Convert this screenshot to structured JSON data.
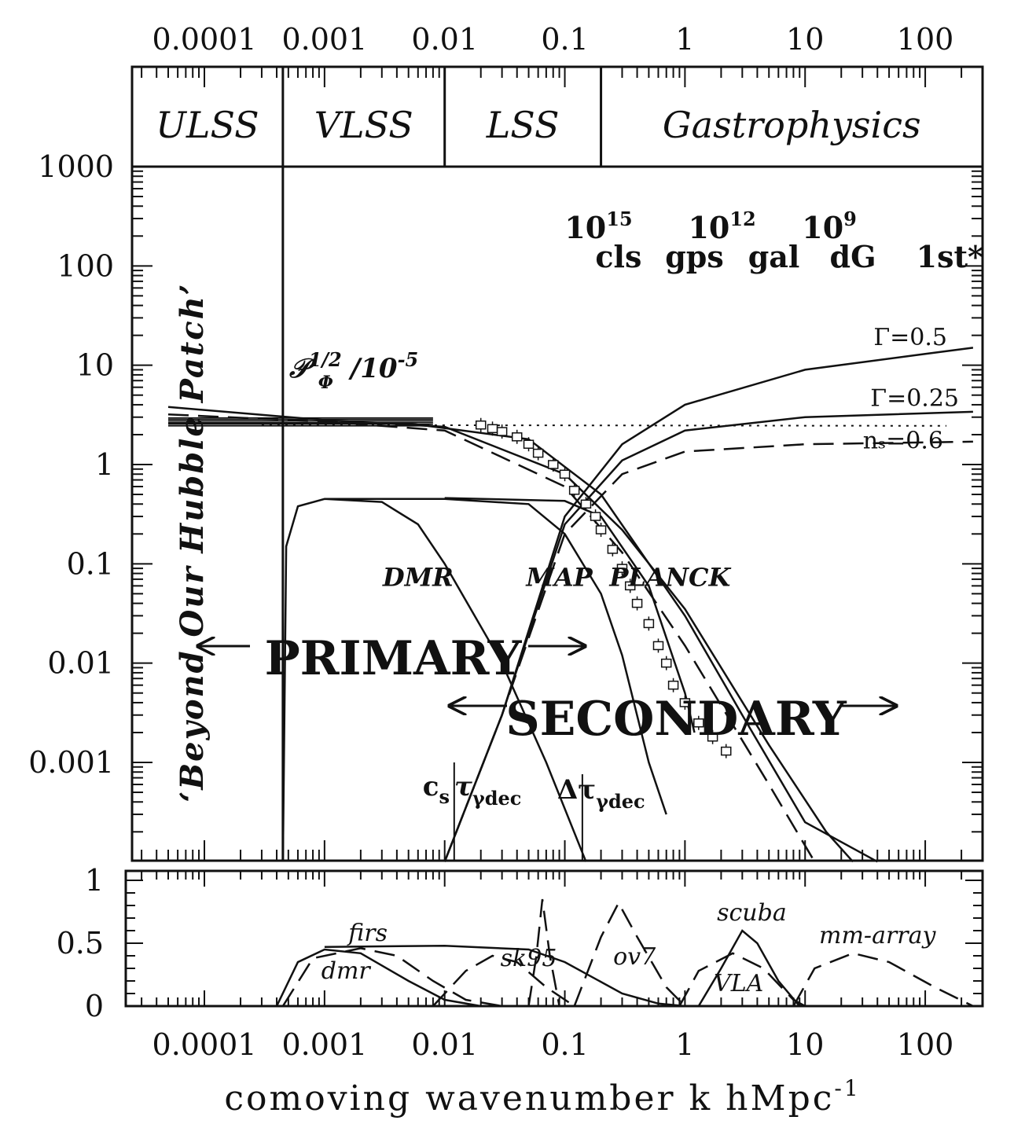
{
  "chart_data": [
    {
      "type": "line",
      "panel": "main",
      "x_axis": {
        "label": "comoving wavenumber k hMpc",
        "label_superscript": "-1",
        "scale": "log",
        "range": [
          2.5e-05,
          300
        ],
        "ticks": [
          "0.0001",
          "0.001",
          "0.01",
          "0.1",
          "1",
          "10",
          "100"
        ]
      },
      "top_axis": {
        "ticks": [
          "0.0001",
          "0.001",
          "0.01",
          "0.1",
          "1",
          "10",
          "100"
        ]
      },
      "y_axis": {
        "scale": "log",
        "range": [
          0.0001,
          1000
        ],
        "ticks": [
          "1000",
          "100",
          "10",
          "1",
          "0.1",
          "0.01",
          "0.001"
        ]
      },
      "regions": [
        {
          "label": "ULSS",
          "k_end": 0.00045
        },
        {
          "label": "VLSS",
          "k_end": 0.01
        },
        {
          "label": "LSS",
          "k_end": 0.2
        },
        {
          "label": "Gastrophysics"
        }
      ],
      "masses": {
        "values": [
          {
            "base": "10",
            "exp": "15",
            "k": 0.3
          },
          {
            "base": "10",
            "exp": "12",
            "k": 3.2
          },
          {
            "base": "10",
            "exp": "9",
            "k": 25
          }
        ],
        "objects": [
          "cls",
          "gps",
          "gal",
          "dG",
          "1st*"
        ]
      },
      "annotations": {
        "primordial": {
          "base": "𝒫",
          "sup": "1/2",
          "sub": "Φ",
          "rest": "/10",
          "rest_sup": "-5"
        },
        "beyond": "‘Beyond Our Hubble Patch’",
        "primary": "PRIMARY",
        "secondary": "SECONDARY",
        "cs_tau": {
          "main": "c",
          "sub1": "s",
          "tau": "τ",
          "sub2": "γdec",
          "k": 0.012
        },
        "dtau": {
          "main": "Δτ",
          "sub": "γdec",
          "k": 0.14
        },
        "arrow_left": "←",
        "arrow_right": "→"
      },
      "series": [
        {
          "label": "Γ=0.5",
          "style": "solid",
          "points": [
            [
              0.01,
              0.0001
            ],
            [
              0.03,
              0.003
            ],
            [
              0.1,
              0.3
            ],
            [
              0.3,
              1.6
            ],
            [
              1,
              4
            ],
            [
              10,
              9
            ],
            [
              100,
              13
            ],
            [
              250,
              15
            ]
          ]
        },
        {
          "label": "Γ=0.25",
          "style": "solid",
          "points": [
            [
              0.01,
              0.0001
            ],
            [
              0.03,
              0.003
            ],
            [
              0.1,
              0.25
            ],
            [
              0.3,
              1.1
            ],
            [
              1,
              2.2
            ],
            [
              10,
              3.0
            ],
            [
              250,
              3.4
            ]
          ]
        },
        {
          "label": "nₛ=0.6",
          "style": "dashed",
          "points": [
            [
              0.01,
              0.0001
            ],
            [
              0.03,
              0.003
            ],
            [
              0.1,
              0.2
            ],
            [
              0.3,
              0.8
            ],
            [
              1,
              1.35
            ],
            [
              10,
              1.6
            ],
            [
              250,
              1.7
            ]
          ]
        },
        {
          "label": "",
          "style": "dotted",
          "points": [
            [
              0.0003,
              2.5
            ],
            [
              150,
              2.45
            ]
          ]
        },
        {
          "label": "",
          "style": "solid",
          "points": [
            [
              5e-05,
              2.6
            ],
            [
              0.005,
              2.6
            ],
            [
              0.05,
              1.8
            ],
            [
              0.2,
              0.5
            ],
            [
              1,
              0.03
            ],
            [
              3,
              0.003
            ],
            [
              10,
              0.00025
            ],
            [
              40,
              0.0001
            ]
          ]
        },
        {
          "label": "",
          "style": "solid",
          "points": [
            [
              5e-05,
              3.8
            ],
            [
              0.001,
              2.8
            ],
            [
              0.01,
              2.4
            ],
            [
              0.1,
              0.8
            ],
            [
              0.3,
              0.22
            ],
            [
              1,
              0.035
            ],
            [
              5,
              0.0015
            ],
            [
              15,
              0.0002
            ],
            [
              25,
              0.0001
            ]
          ]
        },
        {
          "label": "",
          "style": "dashed",
          "points": [
            [
              5e-05,
              3.2
            ],
            [
              0.001,
              2.7
            ],
            [
              0.01,
              2.2
            ],
            [
              0.1,
              0.6
            ],
            [
              0.3,
              0.13
            ],
            [
              1,
              0.015
            ],
            [
              5,
              0.0006
            ],
            [
              12,
              0.0001
            ]
          ]
        },
        {
          "label": "DMR",
          "style": "solid",
          "points": [
            [
              0.00045,
              0.0001
            ],
            [
              0.00048,
              0.15
            ],
            [
              0.0006,
              0.38
            ],
            [
              0.001,
              0.45
            ],
            [
              0.003,
              0.42
            ],
            [
              0.006,
              0.25
            ],
            [
              0.01,
              0.1
            ],
            [
              0.03,
              0.01
            ],
            [
              0.07,
              0.001
            ],
            [
              0.15,
              0.0001
            ]
          ]
        },
        {
          "label": "MAP",
          "style": "solid",
          "points": [
            [
              0.001,
              0.45
            ],
            [
              0.01,
              0.45
            ],
            [
              0.05,
              0.4
            ],
            [
              0.1,
              0.2
            ],
            [
              0.2,
              0.05
            ],
            [
              0.3,
              0.012
            ],
            [
              0.5,
              0.001
            ],
            [
              0.7,
              0.0003
            ]
          ]
        },
        {
          "label": "PLANCK",
          "style": "solid",
          "points": [
            [
              0.01,
              0.46
            ],
            [
              0.1,
              0.43
            ],
            [
              0.2,
              0.3
            ],
            [
              0.5,
              0.06
            ],
            [
              1,
              0.005
            ],
            [
              1.2,
              0.002
            ]
          ]
        }
      ],
      "points": [
        [
          0.02,
          2.5
        ],
        [
          0.025,
          2.3
        ],
        [
          0.03,
          2.15
        ],
        [
          0.04,
          1.9
        ],
        [
          0.05,
          1.6
        ],
        [
          0.06,
          1.3
        ],
        [
          0.08,
          1.0
        ],
        [
          0.1,
          0.8
        ],
        [
          0.12,
          0.55
        ],
        [
          0.15,
          0.4
        ],
        [
          0.18,
          0.3
        ],
        [
          0.2,
          0.22
        ],
        [
          0.25,
          0.14
        ],
        [
          0.3,
          0.09
        ],
        [
          0.35,
          0.06
        ],
        [
          0.4,
          0.04
        ],
        [
          0.5,
          0.025
        ],
        [
          0.6,
          0.015
        ],
        [
          0.7,
          0.01
        ],
        [
          0.8,
          0.006
        ],
        [
          1.0,
          0.004
        ],
        [
          1.3,
          0.0025
        ],
        [
          1.7,
          0.0018
        ],
        [
          2.2,
          0.0013
        ]
      ]
    },
    {
      "type": "line",
      "panel": "window-functions",
      "y_axis": {
        "scale": "linear",
        "range": [
          0,
          1
        ],
        "ticks": [
          "1",
          "0.5",
          "0"
        ]
      },
      "series": [
        {
          "label": "firs",
          "style": "dashed",
          "points": [
            [
              0.00045,
              0.0
            ],
            [
              0.0008,
              0.38
            ],
            [
              0.002,
              0.46
            ],
            [
              0.004,
              0.4
            ],
            [
              0.008,
              0.2
            ],
            [
              0.015,
              0.05
            ],
            [
              0.03,
              0.0
            ]
          ]
        },
        {
          "label": "dmr",
          "style": "solid",
          "points": [
            [
              0.0004,
              0.0
            ],
            [
              0.0006,
              0.35
            ],
            [
              0.001,
              0.45
            ],
            [
              0.002,
              0.42
            ],
            [
              0.005,
              0.2
            ],
            [
              0.01,
              0.05
            ],
            [
              0.02,
              0.0
            ]
          ]
        },
        {
          "label": "",
          "style": "solid",
          "points": [
            [
              0.001,
              0.47
            ],
            [
              0.01,
              0.48
            ],
            [
              0.05,
              0.45
            ],
            [
              0.1,
              0.35
            ],
            [
              0.3,
              0.1
            ],
            [
              0.6,
              0.02
            ],
            [
              1,
              0.0
            ]
          ]
        },
        {
          "label": "sk95",
          "style": "dashed",
          "points": [
            [
              0.008,
              0.0
            ],
            [
              0.015,
              0.28
            ],
            [
              0.025,
              0.4
            ],
            [
              0.04,
              0.35
            ],
            [
              0.07,
              0.15
            ],
            [
              0.12,
              0.0
            ]
          ]
        },
        {
          "label": "",
          "style": "dashed",
          "points": [
            [
              0.05,
              0.0
            ],
            [
              0.058,
              0.4
            ],
            [
              0.065,
              0.85
            ],
            [
              0.075,
              0.4
            ],
            [
              0.09,
              0.0
            ]
          ]
        },
        {
          "label": "ov7",
          "style": "dashed",
          "points": [
            [
              0.12,
              0.0
            ],
            [
              0.2,
              0.55
            ],
            [
              0.28,
              0.82
            ],
            [
              0.4,
              0.55
            ],
            [
              0.7,
              0.15
            ],
            [
              1.0,
              0.0
            ]
          ]
        },
        {
          "label": "scuba",
          "style": "solid",
          "points": [
            [
              1.3,
              0.0
            ],
            [
              2.0,
              0.3
            ],
            [
              3.0,
              0.6
            ],
            [
              4.0,
              0.5
            ],
            [
              6.0,
              0.2
            ],
            [
              9,
              0.0
            ]
          ]
        },
        {
          "label": "VLA",
          "style": "dashed",
          "points": [
            [
              0.9,
              0.0
            ],
            [
              1.3,
              0.28
            ],
            [
              2.5,
              0.42
            ],
            [
              4.5,
              0.3
            ],
            [
              8,
              0.05
            ],
            [
              10,
              0.0
            ]
          ]
        },
        {
          "label": "mm-array",
          "style": "dashed",
          "points": [
            [
              8,
              0.0
            ],
            [
              12,
              0.3
            ],
            [
              25,
              0.42
            ],
            [
              50,
              0.35
            ],
            [
              120,
              0.15
            ],
            [
              250,
              0.0
            ]
          ]
        }
      ]
    }
  ]
}
